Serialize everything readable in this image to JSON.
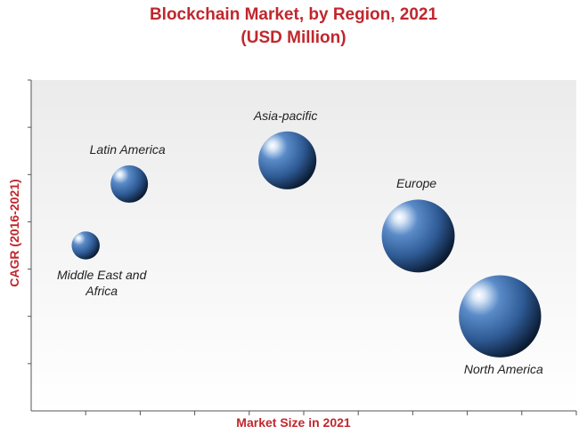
{
  "chart_data": {
    "type": "scatter",
    "title": "Blockchain Market, by Region, 2021",
    "subtitle": "(USD Million)",
    "xlabel": "Market Size in 2021",
    "ylabel": "CAGR (2016-2021)",
    "xlim": [
      0,
      10
    ],
    "ylim": [
      0,
      7
    ],
    "x_ticks": 10,
    "y_ticks": 7,
    "bubble_color": "#3a6aa8",
    "title_color": "#c0272d",
    "series": [
      {
        "name": "Latin America",
        "x": 1.8,
        "y": 4.8,
        "size": 1.0
      },
      {
        "name": "Middle East and Africa",
        "x": 1.0,
        "y": 3.5,
        "size": 0.75
      },
      {
        "name": "Asia-pacific",
        "x": 4.7,
        "y": 5.3,
        "size": 1.55
      },
      {
        "name": "Europe",
        "x": 7.1,
        "y": 3.7,
        "size": 1.95
      },
      {
        "name": "North America",
        "x": 8.6,
        "y": 2.0,
        "size": 2.2
      }
    ]
  }
}
